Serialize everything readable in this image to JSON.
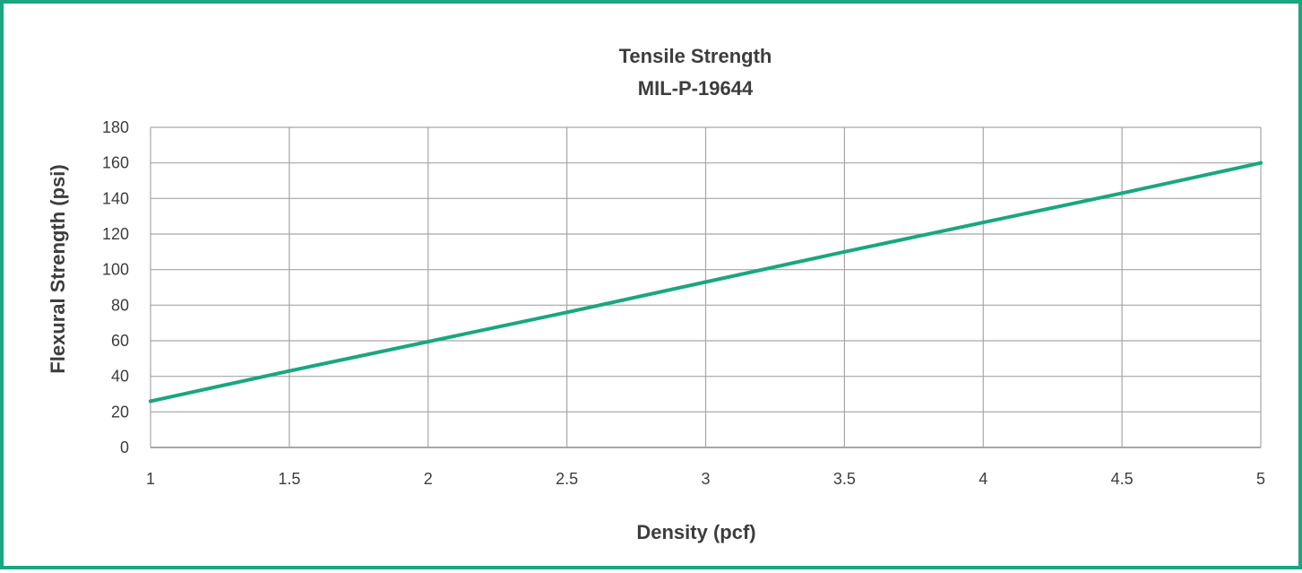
{
  "chart_data": {
    "type": "line",
    "title": "Tensile Strength",
    "subtitle": "MIL-P-19644",
    "xlabel": "Density (pcf)",
    "ylabel": "Flexural Strength (psi)",
    "xlim": [
      1,
      5
    ],
    "ylim": [
      0,
      180
    ],
    "x_ticks": [
      "1",
      "1.5",
      "2",
      "2.5",
      "3",
      "3.5",
      "4",
      "4.5",
      "5"
    ],
    "y_ticks": [
      "0",
      "20",
      "40",
      "60",
      "80",
      "100",
      "120",
      "140",
      "160",
      "180"
    ],
    "grid": true,
    "legend": "none",
    "series": [
      {
        "color": "#1aa681",
        "x": [
          1,
          1.5,
          2,
          2.5,
          3,
          3.5,
          4,
          4.5,
          5
        ],
        "y": [
          26,
          43,
          59.5,
          76,
          93,
          110,
          126.5,
          143,
          160
        ]
      }
    ]
  }
}
